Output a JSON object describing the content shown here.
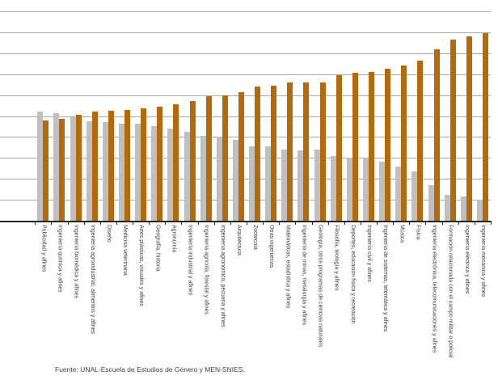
{
  "source_note": "Fuente: UNAL-Escuela de Estudios de Género y MEN-SNIES.",
  "colors": {
    "gray_series": "#bfbfbf",
    "orange_series": "#b4690a",
    "gridline": "#a9a9a9",
    "axis": "#262626",
    "label_text": "#404040"
  },
  "chart_data": {
    "type": "bar",
    "title": "",
    "xlabel": "",
    "ylabel": "",
    "ylim": [
      0,
      100
    ],
    "y_gridline_step": 10,
    "grid": true,
    "y_tick_labels_visible": false,
    "legend_visible": false,
    "categories": [
      "Publicidad y afines",
      "Ingeniería química y afines",
      "Ingeniería biomédica y afines",
      "Ingeniería agroindustrial, alimentos y afines",
      "Diseño",
      "Medicina veterinaria",
      "Artes plásticas, visuales y afines",
      "Geografía, historia",
      "Agronomía",
      "Ingeniería industrial y afines",
      "Ingeniería agrícola, forestal y afines",
      "Ingeniería agronómica, pecuaria y afines",
      "Arquitectura",
      "Zootecnia",
      "Otras ingenierías",
      "Matemáticas, estadística y afines",
      "Ingeniería de minas, metalurgia y afines",
      "Geología, otros programas de ciencias naturales",
      "Filosofía, teología y afines",
      "Deportes, educación física y recreación",
      "Ingeniería civil y afines",
      "Ingeniería de sistemas, telemática y afines",
      "Música",
      "Física",
      "Ingeniería electrónica, telecomunicaciones y afines",
      "Formación relacionada con el campo militar o policial",
      "Ingeniería eléctrica y afines",
      "Ingeniería mecánica y afines"
    ],
    "series": [
      {
        "name": "serie-gris",
        "color": "#bfbfbf",
        "values": [
          52,
          51.5,
          49.5,
          47.5,
          47,
          46.5,
          46.5,
          45,
          44,
          42.5,
          40.5,
          40,
          38.5,
          35.5,
          35.5,
          34,
          33.5,
          34,
          31,
          30,
          30,
          28,
          26,
          23.5,
          17,
          12.5,
          11.5,
          10
        ]
      },
      {
        "name": "serie-naranja",
        "color": "#b4690a",
        "values": [
          48,
          48.5,
          50.5,
          52,
          52.5,
          53,
          53.5,
          54.5,
          55.5,
          57,
          59.5,
          60,
          61.5,
          64,
          64.5,
          66,
          66,
          66,
          69.5,
          70.5,
          71,
          72.5,
          74,
          76.5,
          82,
          86.5,
          88,
          89.5
        ]
      }
    ]
  }
}
